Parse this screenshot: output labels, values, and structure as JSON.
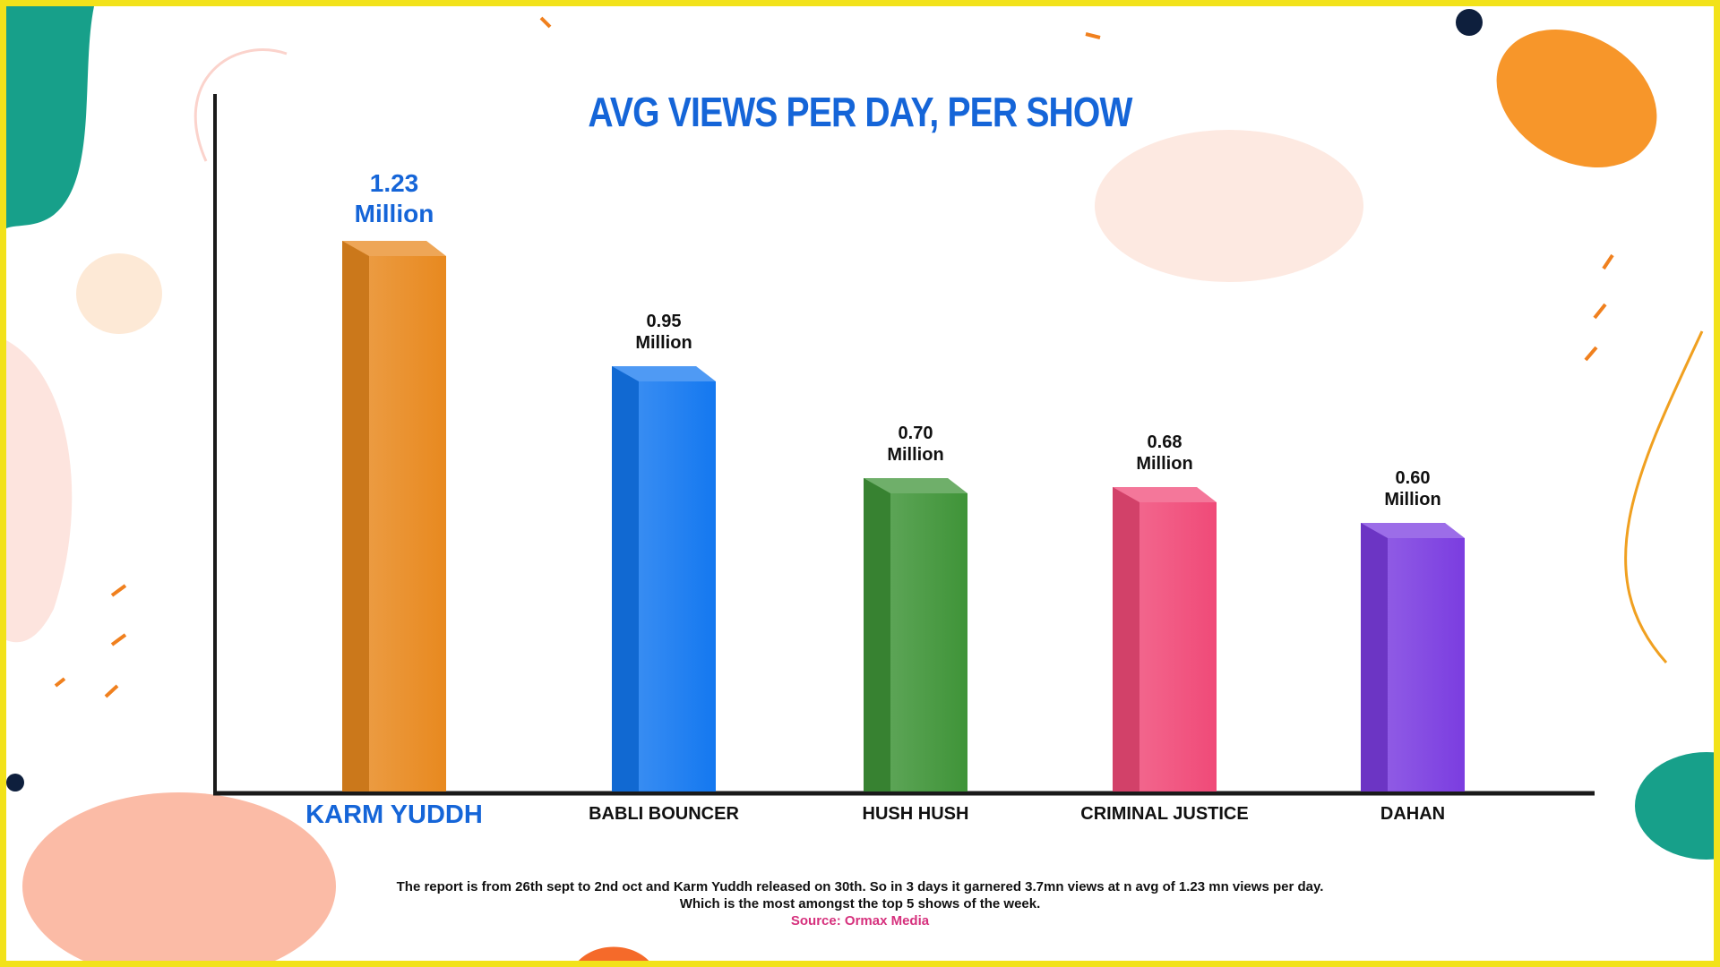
{
  "chart_data": {
    "type": "bar3d",
    "title": "AVG VIEWS PER DAY, PER SHOW",
    "categories": [
      "KARM YUDDH",
      "BABLI BOUNCER",
      "HUSH HUSH",
      "CRIMINAL JUSTICE",
      "DAHAN"
    ],
    "values": [
      1.23,
      0.95,
      0.7,
      0.68,
      0.6
    ],
    "value_labels": [
      "1.23 Million",
      "0.95 Million",
      "0.70 Million",
      "0.68 Million",
      "0.60 Million"
    ],
    "colors": [
      "#e8891f",
      "#1478f0",
      "#3f9438",
      "#f04a78",
      "#7b3de0"
    ],
    "notes": [
      "The report is from 26th sept to 2nd oct and Karm Yuddh released on 30th. So in 3 days it garnered 3.7mn views at n avg of 1.23 mn views per day.",
      "Which is the most amongst the top 5 shows of the week."
    ],
    "source": "Source: Ormax Media"
  }
}
